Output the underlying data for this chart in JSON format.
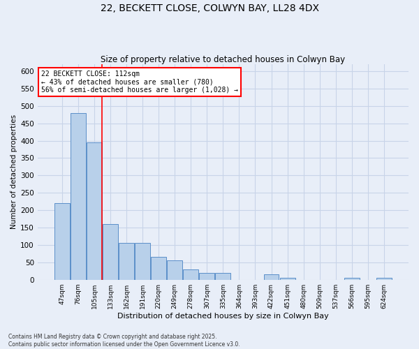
{
  "title_line1": "22, BECKETT CLOSE, COLWYN BAY, LL28 4DX",
  "title_line2": "Size of property relative to detached houses in Colwyn Bay",
  "xlabel": "Distribution of detached houses by size in Colwyn Bay",
  "ylabel": "Number of detached properties",
  "categories": [
    "47sqm",
    "76sqm",
    "105sqm",
    "133sqm",
    "162sqm",
    "191sqm",
    "220sqm",
    "249sqm",
    "278sqm",
    "307sqm",
    "335sqm",
    "364sqm",
    "393sqm",
    "422sqm",
    "451sqm",
    "480sqm",
    "509sqm",
    "537sqm",
    "566sqm",
    "595sqm",
    "624sqm"
  ],
  "values": [
    220,
    480,
    395,
    160,
    105,
    105,
    65,
    55,
    30,
    20,
    20,
    0,
    0,
    15,
    5,
    0,
    0,
    0,
    5,
    0,
    5
  ],
  "bar_color": "#b8d0ea",
  "bar_edge_color": "#5b8fc9",
  "grid_color": "#c8d4e8",
  "background_color": "#e8eef8",
  "vline_x_index": 2,
  "vline_color": "red",
  "annotation_text": "22 BECKETT CLOSE: 112sqm\n← 43% of detached houses are smaller (780)\n56% of semi-detached houses are larger (1,028) →",
  "annotation_box_color": "white",
  "annotation_box_edge": "red",
  "footnote": "Contains HM Land Registry data © Crown copyright and database right 2025.\nContains public sector information licensed under the Open Government Licence v3.0.",
  "ylim": [
    0,
    620
  ],
  "yticks": [
    0,
    50,
    100,
    150,
    200,
    250,
    300,
    350,
    400,
    450,
    500,
    550,
    600
  ]
}
